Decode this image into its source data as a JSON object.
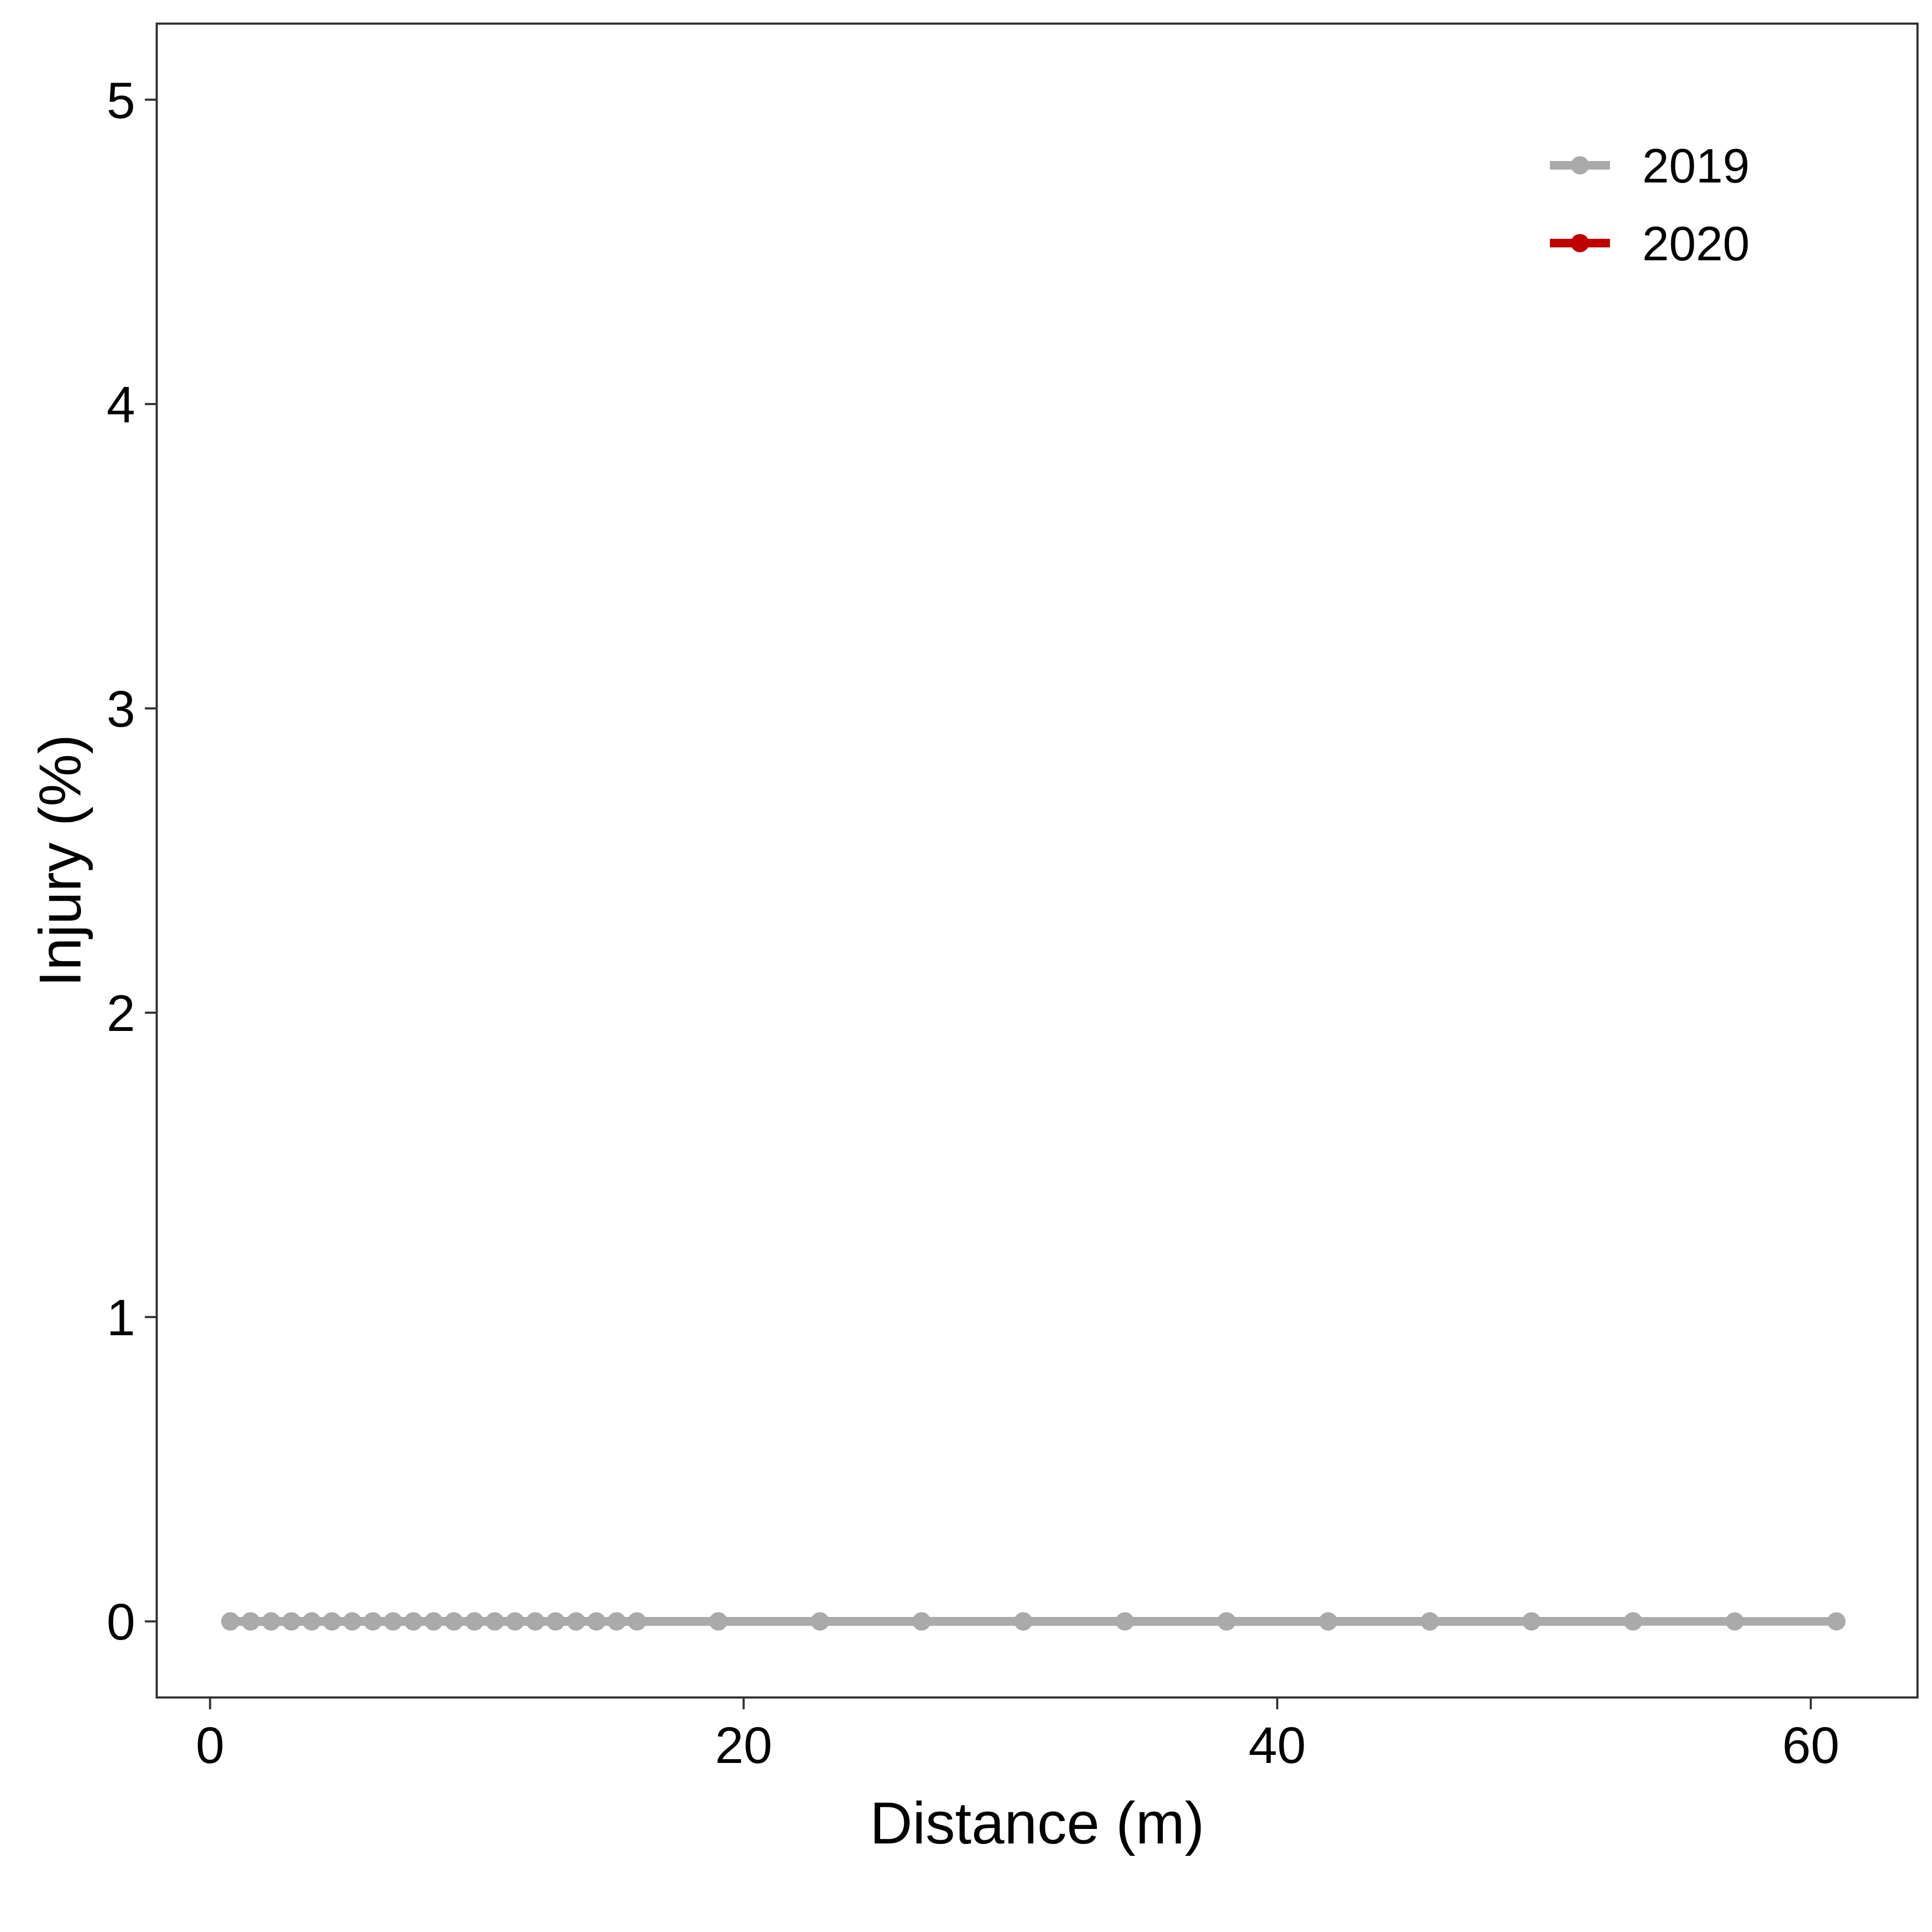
{
  "chart_data": {
    "type": "line",
    "xlabel": "Distance (m)",
    "ylabel": "Injury (%)",
    "xlim": [
      -2,
      64
    ],
    "ylim": [
      -0.25,
      5.25
    ],
    "xticks": [
      0,
      20,
      40,
      60
    ],
    "yticks": [
      0,
      1,
      2,
      3,
      4,
      5
    ],
    "grid": false,
    "legend_position": "top-right",
    "series": [
      {
        "name": "2020",
        "color": "#c00000",
        "x": [
          0.76,
          1.52,
          2.29,
          3.05,
          3.81,
          4.57,
          5.33,
          6.1,
          6.86,
          7.62,
          8.38,
          9.14,
          9.91,
          10.67,
          11.43,
          12.19,
          12.95,
          13.72,
          14.48,
          15.24,
          16.0,
          19.05,
          22.86,
          26.67,
          30.48,
          34.29,
          38.1,
          41.91,
          45.72,
          49.53,
          53.34
        ],
        "y": [
          0,
          0,
          0,
          0,
          0,
          0,
          0,
          0,
          0,
          0,
          0,
          0,
          0,
          0,
          0,
          0,
          0,
          0,
          0,
          0,
          0,
          0,
          0,
          0,
          0,
          0,
          0,
          0,
          0,
          0,
          0
        ]
      },
      {
        "name": "2019",
        "color": "#aaaaaa",
        "x": [
          0.76,
          1.52,
          2.29,
          3.05,
          3.81,
          4.57,
          5.33,
          6.1,
          6.86,
          7.62,
          8.38,
          9.14,
          9.91,
          10.67,
          11.43,
          12.19,
          12.95,
          13.72,
          14.48,
          15.24,
          16.0,
          19.05,
          22.86,
          26.67,
          30.48,
          34.29,
          38.1,
          41.91,
          45.72,
          49.53,
          53.34,
          57.15,
          60.96
        ],
        "y": [
          0,
          0,
          0,
          0,
          0,
          0,
          0,
          0,
          0,
          0,
          0,
          0,
          0,
          0,
          0,
          0,
          0,
          0,
          0,
          0,
          0,
          0,
          0,
          0,
          0,
          0,
          0,
          0,
          0,
          0,
          0,
          0,
          0
        ]
      }
    ],
    "legend": [
      {
        "label": "2019",
        "color": "#aaaaaa"
      },
      {
        "label": "2020",
        "color": "#c00000"
      }
    ]
  }
}
